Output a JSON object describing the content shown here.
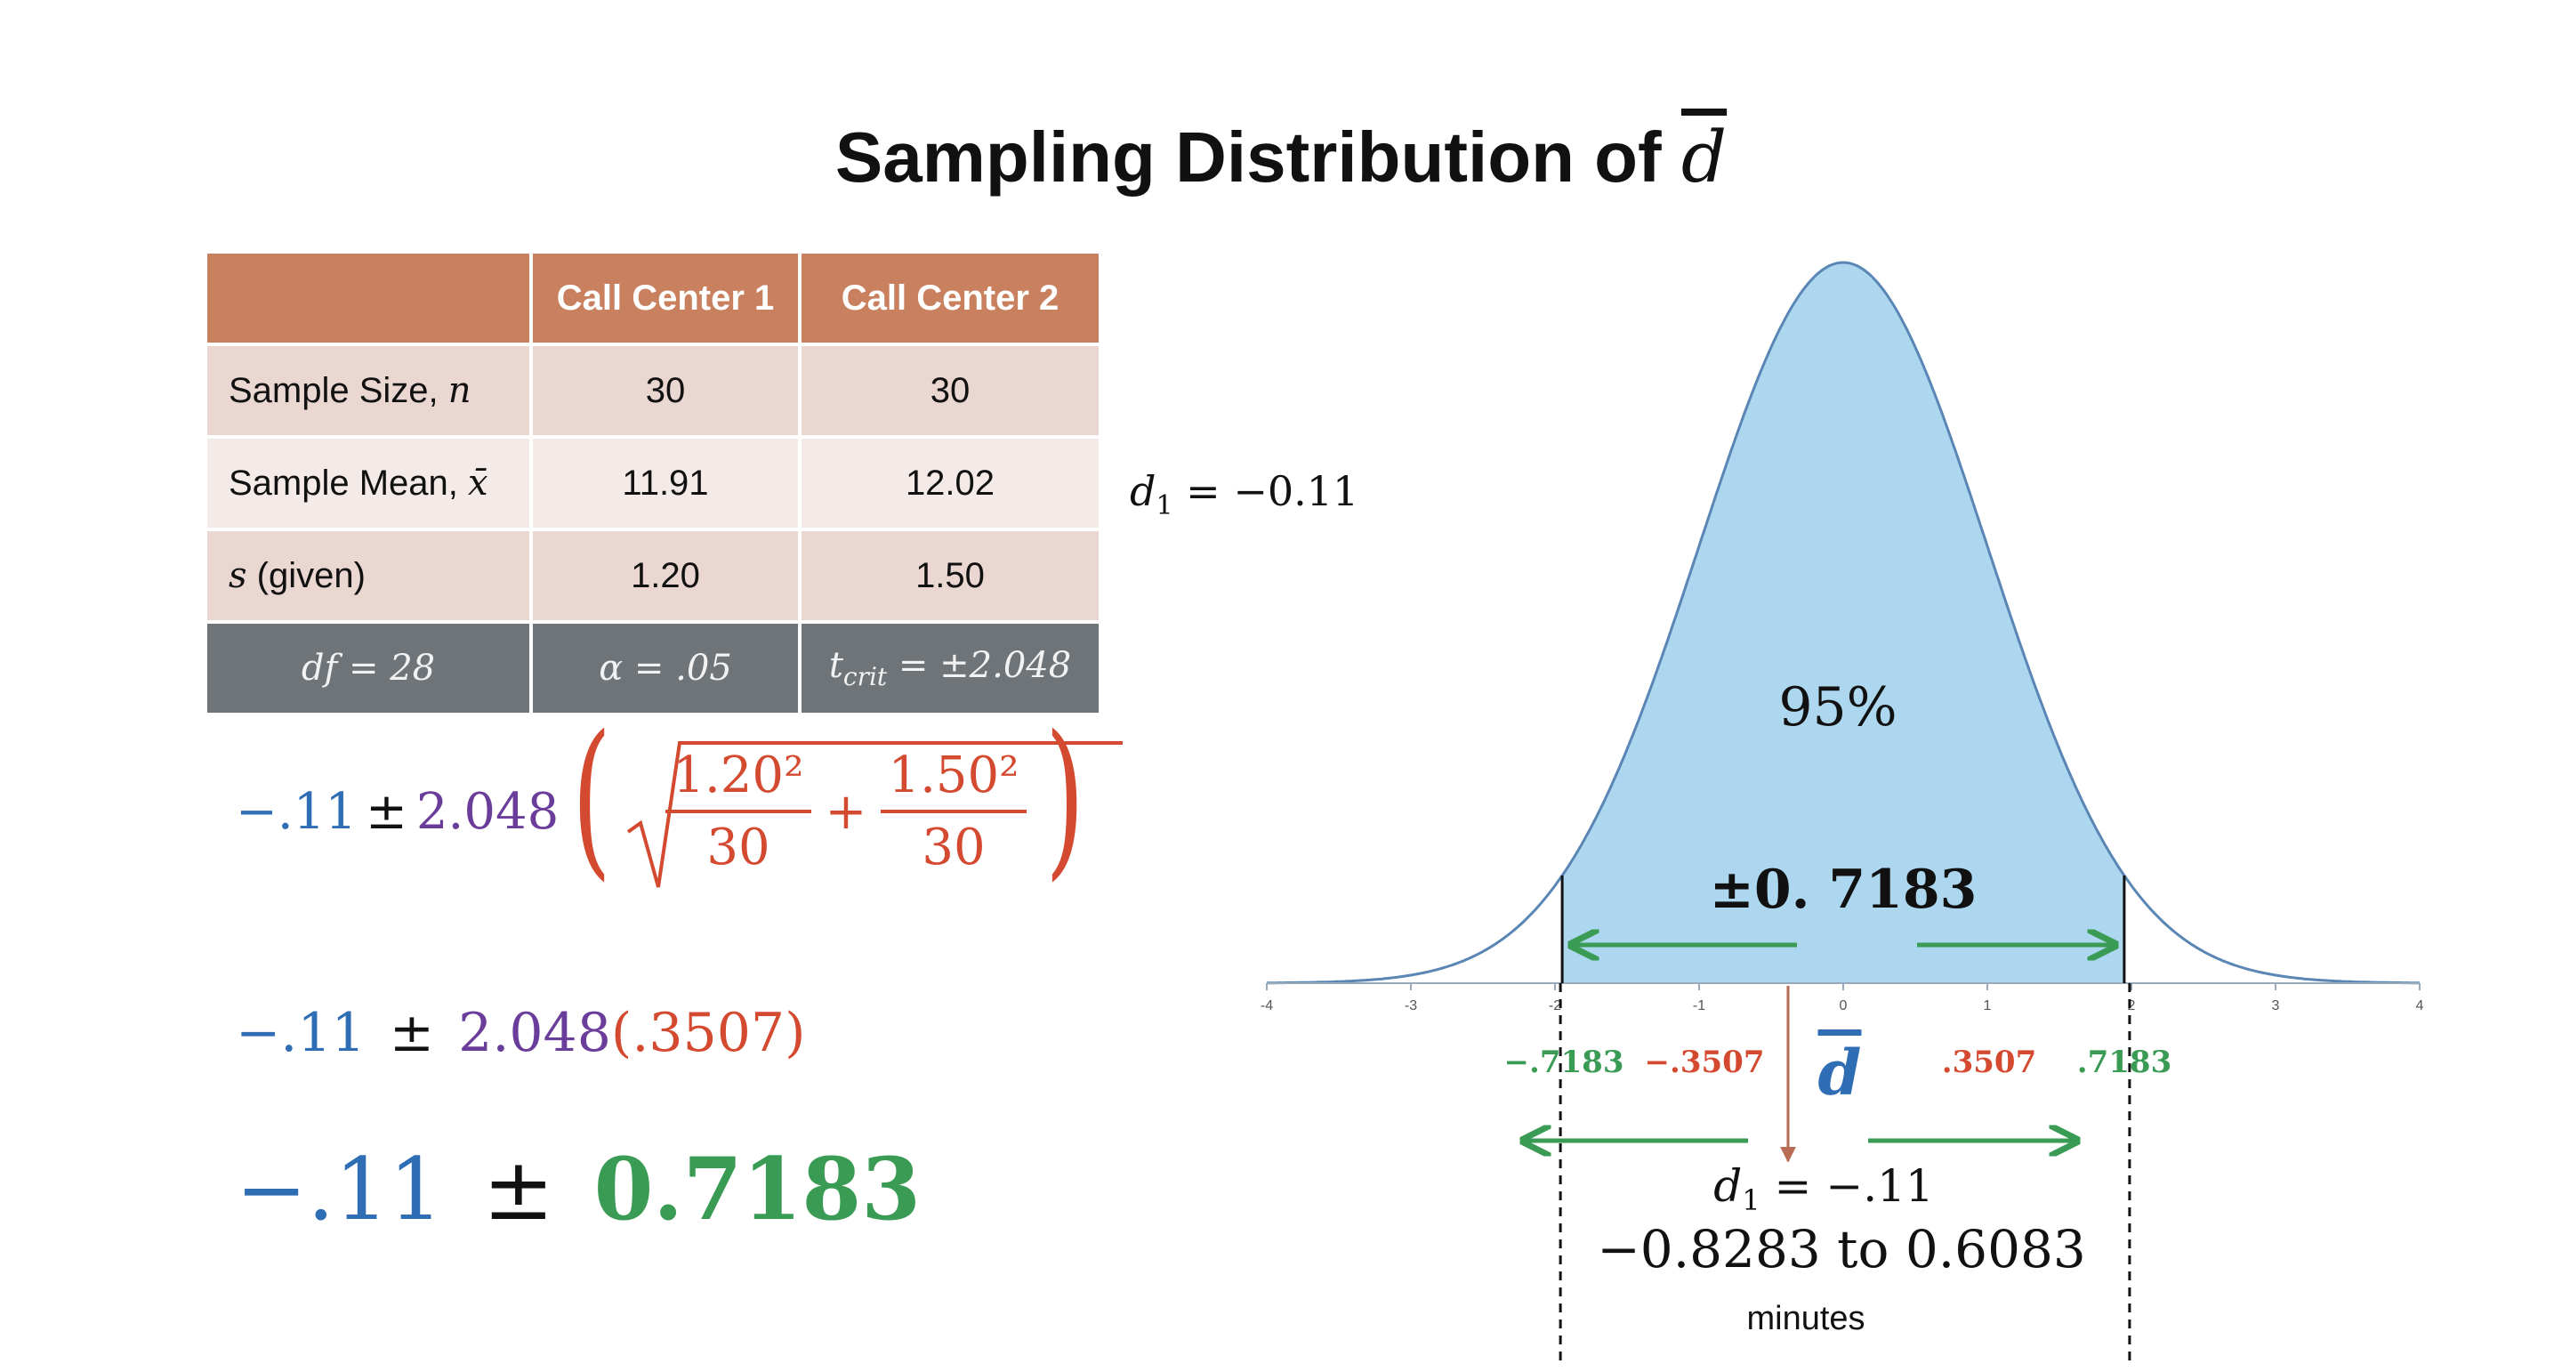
{
  "title": {
    "text": "Sampling Distribution of ",
    "symbol": "d"
  },
  "table": {
    "headers": [
      "",
      "Call Center 1",
      "Call Center 2"
    ],
    "rows": [
      {
        "label": "Sample Size, ",
        "symbol": "n",
        "v1": "30",
        "v2": "30"
      },
      {
        "label": "Sample Mean, ",
        "symbol": "x̄",
        "v1": "11.91",
        "v2": "12.02"
      },
      {
        "label": " (given)",
        "symbol": "s",
        "v1": "1.20",
        "v2": "1.50"
      }
    ],
    "footer": [
      "df = 28",
      "α = .05",
      "t",
      "crit",
      " = ±2.048"
    ]
  },
  "formula1": {
    "mean": "−.11",
    "pm": "±",
    "t": "2.048",
    "num1": "1.20²",
    "den1": "30",
    "plus": "+",
    "num2": "1.50²",
    "den2": "30"
  },
  "formula2": {
    "mean": "−.11",
    "pm": "±",
    "t": "2.048",
    "se": "(.3507)"
  },
  "formula3": {
    "mean": "−.11",
    "pm": "±",
    "moe": "0.7183"
  },
  "d1_side": {
    "var": "d",
    "sub": "1",
    "rest": " = −0.11"
  },
  "chart_data": {
    "type": "area",
    "distribution": "normal",
    "x_range": [
      -4,
      4
    ],
    "ticks": [
      "-4",
      "-3",
      "-2",
      "-1",
      "0",
      "1",
      "2",
      "3",
      "4"
    ],
    "shaded_range": [
      -1.95,
      1.95
    ],
    "center_label": "95%",
    "moe_label": "±0. 7183",
    "labels": {
      "neg_moe": "−.7183",
      "neg_se": "−.3507",
      "pos_se": ".3507",
      "pos_moe": ".7183",
      "dbar": "d",
      "d1_var": "d",
      "d1_sub": "1",
      "d1_rest": " = −.11",
      "interval": "−0.8283 to 0.6083",
      "unit": "minutes"
    },
    "colors": {
      "fill": "#acd7ee",
      "curve": "#5a86b5",
      "green": "#3a9b55",
      "red": "#d44a30",
      "arrow_down": "#b86b55",
      "dbar": "#2f6db5"
    }
  }
}
